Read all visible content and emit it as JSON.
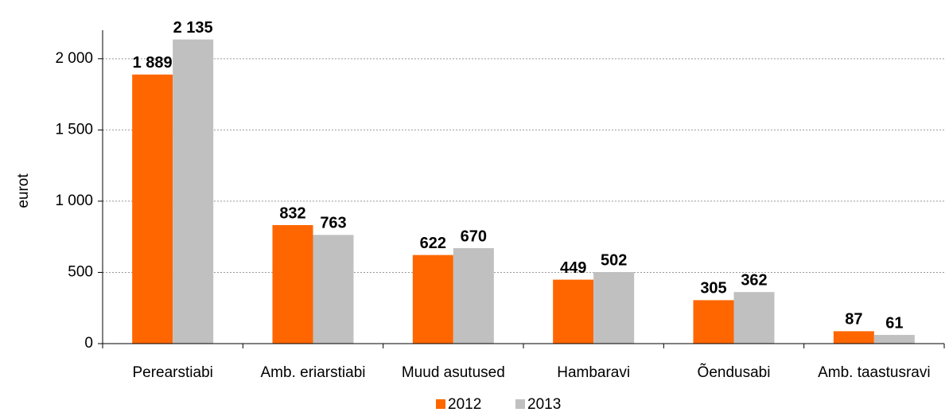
{
  "chart_data": {
    "type": "bar",
    "y_label": "eurot",
    "categories": [
      "Perearstiabi",
      "Amb. eriarstiabi",
      "Muud asutused",
      "Hambaravi",
      "Õendusabi",
      "Amb. taastusravi"
    ],
    "series": [
      {
        "name": "2012",
        "color": "#ff6600",
        "values": [
          1889,
          832,
          622,
          449,
          305,
          87
        ],
        "value_labels": [
          "1 889",
          "832",
          "622",
          "449",
          "305",
          "87"
        ]
      },
      {
        "name": "2013",
        "color": "#c0c0c0",
        "values": [
          2135,
          763,
          670,
          502,
          362,
          61
        ],
        "value_labels": [
          "2 135",
          "763",
          "670",
          "502",
          "362",
          "61"
        ]
      }
    ],
    "ylim": [
      0,
      2200
    ],
    "yticks": [
      0,
      500,
      {
        "value": 1000,
        "label": "1 000"
      },
      {
        "value": 1500,
        "label": "1 500"
      },
      {
        "value": 2000,
        "label": "2 000"
      }
    ],
    "grid": true,
    "legend": "bottom"
  }
}
